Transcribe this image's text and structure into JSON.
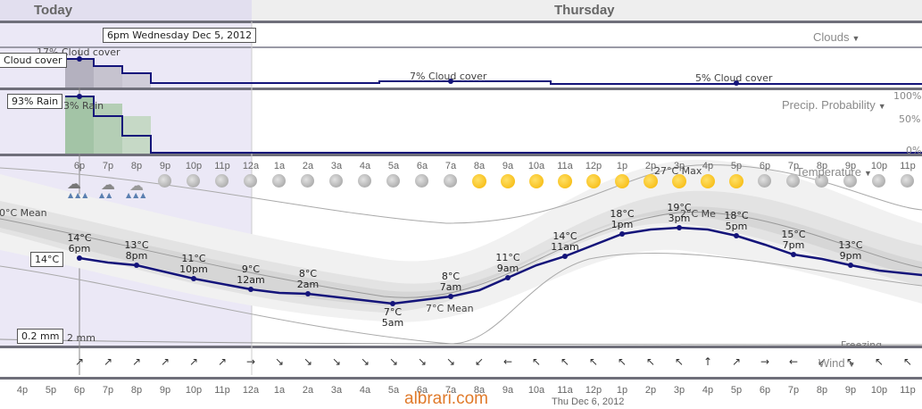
{
  "header": {
    "today": "Today",
    "thursday": "Thursday"
  },
  "tooltip_time": "6pm Wednesday Dec 5, 2012",
  "clouds": {
    "label": "Clouds",
    "tip": "Cloud cover",
    "tip_partial": "Cloud cover",
    "tip_partial_prefix": "17%",
    "mid_label": "7% Cloud cover",
    "late_label": "5% Cloud cover"
  },
  "precip": {
    "label": "Precip. Probability",
    "tip": "93% Rain",
    "tip_partial": "3% Rain",
    "axis": [
      "100%",
      "50%",
      "0%"
    ]
  },
  "temperature": {
    "label": "Temperature",
    "max_label": "27°C Max",
    "mean_label_left": "0°C Mean",
    "mean_label_mid": "7°C Mean",
    "mean_label_right": "2°C Me",
    "tip": "14°C",
    "precip_tip": "0.2 mm",
    "precip_partial": "2 mm",
    "freezing_partial": "Freezing",
    "points": [
      {
        "t": "14°C",
        "time": "6pm"
      },
      {
        "t": "13°C",
        "time": "8pm"
      },
      {
        "t": "11°C",
        "time": "10pm"
      },
      {
        "t": "9°C",
        "time": "12am"
      },
      {
        "t": "8°C",
        "time": "2am"
      },
      {
        "t": "7°C",
        "time": "5am"
      },
      {
        "t": "8°C",
        "time": "7am"
      },
      {
        "t": "11°C",
        "time": "9am"
      },
      {
        "t": "14°C",
        "time": "11am"
      },
      {
        "t": "18°C",
        "time": "1pm"
      },
      {
        "t": "19°C",
        "time": "3pm"
      },
      {
        "t": "18°C",
        "time": "5pm"
      },
      {
        "t": "15°C",
        "time": "7pm"
      },
      {
        "t": "13°C",
        "time": "9pm"
      }
    ]
  },
  "hours_top": [
    "6p",
    "7p",
    "8p",
    "9p",
    "10p",
    "11p",
    "12a",
    "1a",
    "2a",
    "3a",
    "4a",
    "5a",
    "6a",
    "7a",
    "8a",
    "9a",
    "10a",
    "11a",
    "12p",
    "1p",
    "2p",
    "3p",
    "4p",
    "5p",
    "6p",
    "7p",
    "8p",
    "9p",
    "10p",
    "11p"
  ],
  "hours_bottom": [
    "4p",
    "5p",
    "6p",
    "7p",
    "8p",
    "9p",
    "10p",
    "11p",
    "12a",
    "1a",
    "2a",
    "3a",
    "4a",
    "5a",
    "6a",
    "7a",
    "8a",
    "9a",
    "10a",
    "11a",
    "12p",
    "1p",
    "2p",
    "3p",
    "4p",
    "5p",
    "6p",
    "7p",
    "8p",
    "9p",
    "10p",
    "11p"
  ],
  "wind": {
    "label": "Wind"
  },
  "footer": {
    "date": "Thu Dec 6, 2012",
    "watermark": "albrari.com"
  },
  "colors": {
    "line": "#14147a",
    "today_bg": "#ebe8f6",
    "rain_bar": "#a3c4a6",
    "cloud_bar": "#b4b1bf"
  }
}
